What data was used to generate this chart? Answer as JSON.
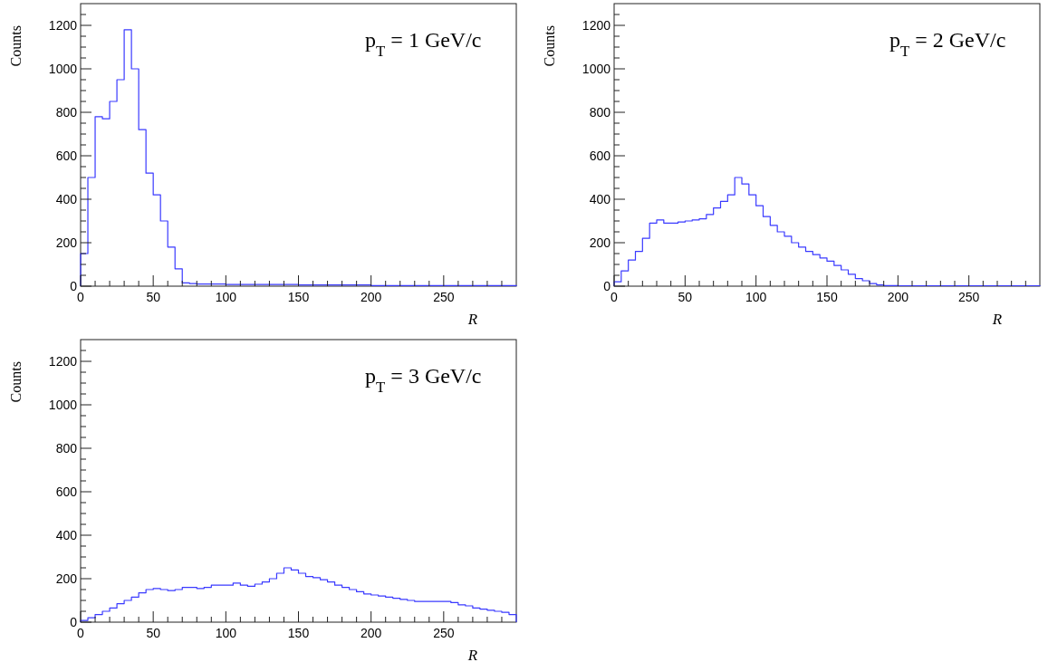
{
  "chart_data": [
    {
      "type": "histogram",
      "title": "p$_{T}$ = 1 GeV/c",
      "xlabel": "R",
      "ylabel": "Counts",
      "color": "#3a3aff",
      "xlim": [
        0,
        300
      ],
      "ylim": [
        0,
        1300
      ],
      "xticks": [
        0,
        {
          "value": 10,
          "label": null
        },
        {
          "value": 20,
          "label": null
        },
        {
          "value": 30,
          "label": null
        },
        {
          "value": 40,
          "label": null
        },
        50,
        {
          "value": 60,
          "label": null
        },
        {
          "value": 70,
          "label": null
        },
        {
          "value": 80,
          "label": null
        },
        {
          "value": 90,
          "label": null
        },
        100,
        {
          "value": 110,
          "label": null
        },
        {
          "value": 120,
          "label": null
        },
        {
          "value": 130,
          "label": null
        },
        {
          "value": 140,
          "label": null
        },
        150,
        {
          "value": 160,
          "label": null
        },
        {
          "value": 170,
          "label": null
        },
        {
          "value": 180,
          "label": null
        },
        {
          "value": 190,
          "label": null
        },
        200,
        {
          "value": 210,
          "label": null
        },
        {
          "value": 220,
          "label": null
        },
        {
          "value": 230,
          "label": null
        },
        {
          "value": 240,
          "label": null
        },
        250,
        {
          "value": 260,
          "label": null
        },
        {
          "value": 270,
          "label": null
        },
        {
          "value": 280,
          "label": null
        },
        {
          "value": 290,
          "label": null
        }
      ],
      "yticks": [
        0,
        {
          "value": 50,
          "label": null
        },
        {
          "value": 100,
          "label": null
        },
        {
          "value": 150,
          "label": null
        },
        200,
        {
          "value": 250,
          "label": null
        },
        {
          "value": 300,
          "label": null
        },
        {
          "value": 350,
          "label": null
        },
        400,
        {
          "value": 450,
          "label": null
        },
        {
          "value": 500,
          "label": null
        },
        {
          "value": 550,
          "label": null
        },
        600,
        {
          "value": 650,
          "label": null
        },
        {
          "value": 700,
          "label": null
        },
        {
          "value": 750,
          "label": null
        },
        800,
        {
          "value": 850,
          "label": null
        },
        {
          "value": 900,
          "label": null
        },
        {
          "value": 950,
          "label": null
        },
        1000,
        {
          "value": 1050,
          "label": null
        },
        {
          "value": 1100,
          "label": null
        },
        {
          "value": 1150,
          "label": null
        },
        1200,
        {
          "value": 1250,
          "label": null
        }
      ],
      "bins": [
        0,
        5,
        10,
        15,
        20,
        25,
        30,
        35,
        40,
        45,
        50,
        55,
        60,
        65,
        70,
        75,
        80,
        85,
        90,
        95,
        100,
        105,
        110,
        115,
        120,
        125,
        130,
        135,
        140,
        145,
        150,
        155,
        160,
        165,
        170,
        175,
        180,
        185,
        190,
        195,
        200,
        205,
        210,
        215,
        220,
        225,
        230,
        235,
        240,
        245,
        250,
        255,
        260,
        265,
        270,
        275,
        280,
        285,
        290,
        295,
        300
      ],
      "values": [
        150,
        500,
        780,
        770,
        850,
        950,
        1180,
        1000,
        720,
        520,
        420,
        300,
        180,
        80,
        15,
        12,
        10,
        10,
        10,
        10,
        8,
        8,
        8,
        8,
        8,
        8,
        8,
        8,
        8,
        8,
        6,
        6,
        6,
        6,
        6,
        6,
        6,
        6,
        6,
        6,
        3,
        3,
        3,
        3,
        3,
        3,
        3,
        3,
        3,
        3,
        3,
        3,
        3,
        3,
        3,
        3,
        3,
        3,
        3,
        3
      ]
    },
    {
      "type": "histogram",
      "title": "p$_{T}$ = 2 GeV/c",
      "xlabel": "R",
      "ylabel": "Counts",
      "color": "#3a3aff",
      "xlim": [
        0,
        300
      ],
      "ylim": [
        0,
        1300
      ],
      "xticks": [
        0,
        {
          "value": 10,
          "label": null
        },
        {
          "value": 20,
          "label": null
        },
        {
          "value": 30,
          "label": null
        },
        {
          "value": 40,
          "label": null
        },
        50,
        {
          "value": 60,
          "label": null
        },
        {
          "value": 70,
          "label": null
        },
        {
          "value": 80,
          "label": null
        },
        {
          "value": 90,
          "label": null
        },
        100,
        {
          "value": 110,
          "label": null
        },
        {
          "value": 120,
          "label": null
        },
        {
          "value": 130,
          "label": null
        },
        {
          "value": 140,
          "label": null
        },
        150,
        {
          "value": 160,
          "label": null
        },
        {
          "value": 170,
          "label": null
        },
        {
          "value": 180,
          "label": null
        },
        {
          "value": 190,
          "label": null
        },
        200,
        {
          "value": 210,
          "label": null
        },
        {
          "value": 220,
          "label": null
        },
        {
          "value": 230,
          "label": null
        },
        {
          "value": 240,
          "label": null
        },
        250,
        {
          "value": 260,
          "label": null
        },
        {
          "value": 270,
          "label": null
        },
        {
          "value": 280,
          "label": null
        },
        {
          "value": 290,
          "label": null
        }
      ],
      "yticks": [
        0,
        {
          "value": 50,
          "label": null
        },
        {
          "value": 100,
          "label": null
        },
        {
          "value": 150,
          "label": null
        },
        200,
        {
          "value": 250,
          "label": null
        },
        {
          "value": 300,
          "label": null
        },
        {
          "value": 350,
          "label": null
        },
        400,
        {
          "value": 450,
          "label": null
        },
        {
          "value": 500,
          "label": null
        },
        {
          "value": 550,
          "label": null
        },
        600,
        {
          "value": 650,
          "label": null
        },
        {
          "value": 700,
          "label": null
        },
        {
          "value": 750,
          "label": null
        },
        800,
        {
          "value": 850,
          "label": null
        },
        {
          "value": 900,
          "label": null
        },
        {
          "value": 950,
          "label": null
        },
        1000,
        {
          "value": 1050,
          "label": null
        },
        {
          "value": 1100,
          "label": null
        },
        {
          "value": 1150,
          "label": null
        },
        1200,
        {
          "value": 1250,
          "label": null
        }
      ],
      "bins": [
        0,
        5,
        10,
        15,
        20,
        25,
        30,
        35,
        40,
        45,
        50,
        55,
        60,
        65,
        70,
        75,
        80,
        85,
        90,
        95,
        100,
        105,
        110,
        115,
        120,
        125,
        130,
        135,
        140,
        145,
        150,
        155,
        160,
        165,
        170,
        175,
        180,
        185,
        190,
        195,
        200,
        205,
        210,
        215,
        220,
        225,
        230,
        235,
        240,
        245,
        250,
        255,
        260,
        265,
        270,
        275,
        280,
        285,
        290,
        295,
        300
      ],
      "values": [
        20,
        70,
        120,
        160,
        220,
        290,
        305,
        290,
        290,
        295,
        300,
        305,
        310,
        330,
        360,
        390,
        420,
        500,
        470,
        420,
        370,
        320,
        280,
        250,
        230,
        200,
        180,
        160,
        145,
        130,
        115,
        95,
        75,
        55,
        35,
        25,
        12,
        6,
        3,
        3,
        2,
        2,
        2,
        2,
        2,
        2,
        2,
        2,
        2,
        2,
        2,
        2,
        2,
        2,
        2,
        2,
        2,
        2,
        2,
        2
      ]
    },
    {
      "type": "histogram",
      "title": "p$_{T}$ = 3 GeV/c",
      "xlabel": "R",
      "ylabel": "Counts",
      "color": "#3a3aff",
      "xlim": [
        0,
        300
      ],
      "ylim": [
        0,
        1300
      ],
      "xticks": [
        0,
        {
          "value": 10,
          "label": null
        },
        {
          "value": 20,
          "label": null
        },
        {
          "value": 30,
          "label": null
        },
        {
          "value": 40,
          "label": null
        },
        50,
        {
          "value": 60,
          "label": null
        },
        {
          "value": 70,
          "label": null
        },
        {
          "value": 80,
          "label": null
        },
        {
          "value": 90,
          "label": null
        },
        100,
        {
          "value": 110,
          "label": null
        },
        {
          "value": 120,
          "label": null
        },
        {
          "value": 130,
          "label": null
        },
        {
          "value": 140,
          "label": null
        },
        150,
        {
          "value": 160,
          "label": null
        },
        {
          "value": 170,
          "label": null
        },
        {
          "value": 180,
          "label": null
        },
        {
          "value": 190,
          "label": null
        },
        200,
        {
          "value": 210,
          "label": null
        },
        {
          "value": 220,
          "label": null
        },
        {
          "value": 230,
          "label": null
        },
        {
          "value": 240,
          "label": null
        },
        250,
        {
          "value": 260,
          "label": null
        },
        {
          "value": 270,
          "label": null
        },
        {
          "value": 280,
          "label": null
        },
        {
          "value": 290,
          "label": null
        }
      ],
      "yticks": [
        0,
        {
          "value": 50,
          "label": null
        },
        {
          "value": 100,
          "label": null
        },
        {
          "value": 150,
          "label": null
        },
        200,
        {
          "value": 250,
          "label": null
        },
        {
          "value": 300,
          "label": null
        },
        {
          "value": 350,
          "label": null
        },
        400,
        {
          "value": 450,
          "label": null
        },
        {
          "value": 500,
          "label": null
        },
        {
          "value": 550,
          "label": null
        },
        600,
        {
          "value": 650,
          "label": null
        },
        {
          "value": 700,
          "label": null
        },
        {
          "value": 750,
          "label": null
        },
        800,
        {
          "value": 850,
          "label": null
        },
        {
          "value": 900,
          "label": null
        },
        {
          "value": 950,
          "label": null
        },
        1000,
        {
          "value": 1050,
          "label": null
        },
        {
          "value": 1100,
          "label": null
        },
        {
          "value": 1150,
          "label": null
        },
        1200,
        {
          "value": 1250,
          "label": null
        }
      ],
      "bins": [
        0,
        5,
        10,
        15,
        20,
        25,
        30,
        35,
        40,
        45,
        50,
        55,
        60,
        65,
        70,
        75,
        80,
        85,
        90,
        95,
        100,
        105,
        110,
        115,
        120,
        125,
        130,
        135,
        140,
        145,
        150,
        155,
        160,
        165,
        170,
        175,
        180,
        185,
        190,
        195,
        200,
        205,
        210,
        215,
        220,
        225,
        230,
        235,
        240,
        245,
        250,
        255,
        260,
        265,
        270,
        275,
        280,
        285,
        290,
        295,
        300
      ],
      "values": [
        8,
        20,
        35,
        50,
        65,
        85,
        100,
        115,
        135,
        150,
        155,
        150,
        145,
        150,
        160,
        160,
        155,
        160,
        170,
        170,
        170,
        180,
        170,
        165,
        175,
        185,
        200,
        225,
        250,
        240,
        225,
        210,
        205,
        195,
        185,
        170,
        160,
        150,
        140,
        130,
        125,
        120,
        115,
        110,
        105,
        100,
        95,
        95,
        95,
        95,
        95,
        90,
        80,
        75,
        65,
        60,
        55,
        50,
        45,
        35
      ]
    }
  ]
}
